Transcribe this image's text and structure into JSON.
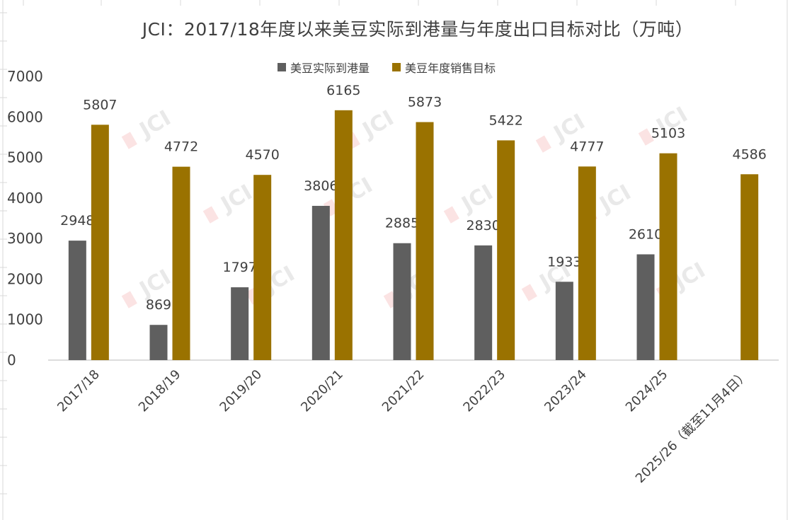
{
  "colors": {
    "series_actual": "#5f5f5f",
    "series_target": "#9a7200",
    "axis": "#d0d0d0",
    "sheet_grid": "#d9d9d9",
    "text": "#404040"
  },
  "chart_data": {
    "type": "bar",
    "title": "JCI：2017/18年度以来美豆实际到港量与年度出口目标对比（万吨）",
    "xlabel": "",
    "ylabel": "",
    "ylim": [
      0,
      7000
    ],
    "yticks": [
      "0",
      "1000",
      "2000",
      "3000",
      "4000",
      "5000",
      "6000",
      "7000"
    ],
    "grid": false,
    "legend_position": "top-center",
    "categories": [
      "2017/18",
      "2018/19",
      "2019/20",
      "2020/21",
      "2021/22",
      "2022/23",
      "2023/24",
      "2024/25",
      "2025/26（截至11月4日）"
    ],
    "series": [
      {
        "name": "美豆实际到港量",
        "values": [
          2948,
          869,
          1797,
          3806,
          2885,
          2830,
          1933,
          2610,
          null
        ],
        "labels": [
          "2948",
          "869",
          "1797",
          "3806",
          "2885",
          "2830",
          "1933",
          "2610",
          ""
        ]
      },
      {
        "name": "美豆年度销售目标",
        "values": [
          5807,
          4772,
          4570,
          6165,
          5873,
          5422,
          4777,
          5103,
          4586
        ],
        "labels": [
          "5807",
          "4772",
          "4570",
          "6165",
          "5873",
          "5422",
          "4777",
          "5103",
          "4586"
        ]
      }
    ]
  },
  "watermark": {
    "text": "JCI"
  }
}
